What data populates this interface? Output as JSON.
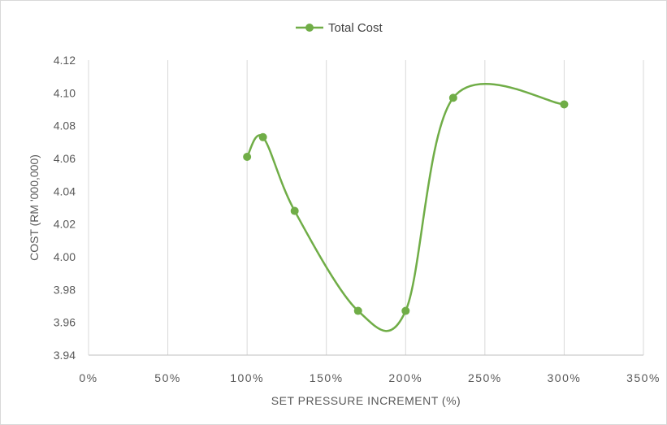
{
  "chart_data": {
    "type": "scatter",
    "title": "",
    "xlabel": "SET PRESSURE INCREMENT (%)",
    "ylabel": "COST (RM '000,000)",
    "xlim": [
      0,
      350
    ],
    "ylim": [
      3.94,
      4.12
    ],
    "x_ticks": [
      0,
      50,
      100,
      150,
      200,
      250,
      300,
      350
    ],
    "x_tick_labels": [
      "0%",
      "50%",
      "100%",
      "150%",
      "200%",
      "250%",
      "300%",
      "350%"
    ],
    "y_ticks": [
      3.94,
      3.96,
      3.98,
      4.0,
      4.02,
      4.04,
      4.06,
      4.08,
      4.1,
      4.12
    ],
    "y_tick_labels": [
      "3.94",
      "3.96",
      "3.98",
      "4.00",
      "4.02",
      "4.04",
      "4.06",
      "4.08",
      "4.10",
      "4.12"
    ],
    "grid": "vertical",
    "smooth": true,
    "legend": "top-center",
    "series": [
      {
        "name": "Total Cost",
        "color": "#70ad47",
        "x": [
          100,
          110,
          130,
          170,
          200,
          230,
          300
        ],
        "y": [
          4.061,
          4.073,
          4.028,
          3.967,
          3.967,
          4.097,
          4.093
        ]
      }
    ]
  }
}
